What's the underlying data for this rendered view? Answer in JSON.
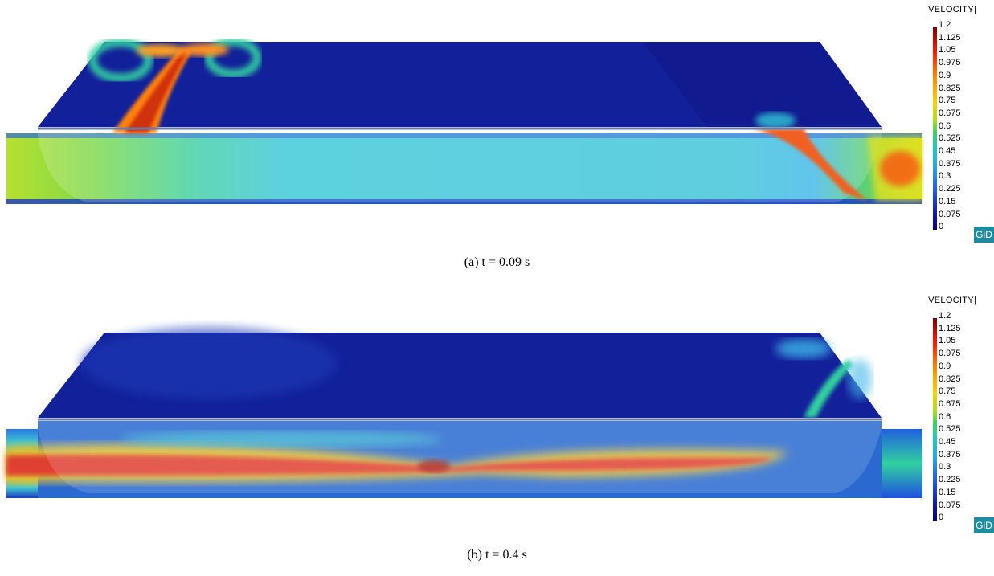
{
  "panels": [
    {
      "caption": "(a)  t = 0.09 s",
      "legend_title": "|VELOCITY|",
      "gid_label": "GiD"
    },
    {
      "caption": "(b)  t = 0.4 s",
      "legend_title": "|VELOCITY|",
      "gid_label": "GiD"
    }
  ],
  "legend_ticks": [
    "1.2",
    "1.125",
    "1.05",
    "0.975",
    "0.9",
    "0.825",
    "0.75",
    "0.675",
    "0.6",
    "0.525",
    "0.45",
    "0.375",
    "0.3",
    "0.225",
    "0.15",
    "0.075",
    "0"
  ],
  "colors": {
    "background": "#ffffff",
    "low_velocity": "#12209a",
    "mid_velocity": "#3ac8d8",
    "high_velocity": "#e03020",
    "max_velocity": "#7f0000",
    "gid_badge": "#1e8ca0"
  }
}
